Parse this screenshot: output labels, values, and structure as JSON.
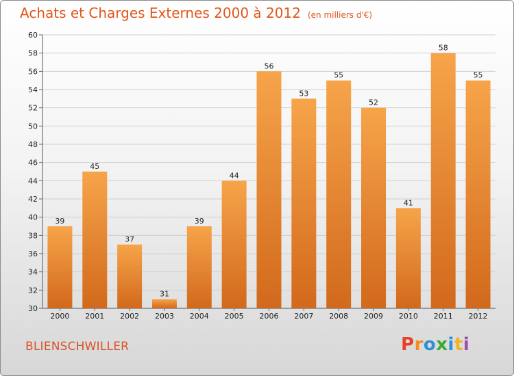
{
  "title": "Achats et Charges Externes 2000 à 2012",
  "unit": "(en milliers d'€)",
  "commune": "BLIENSCHWILLER",
  "logo": {
    "letters": [
      "P",
      "r",
      "o",
      "x",
      "i",
      "t",
      "i"
    ],
    "colors": [
      "#e63f2c",
      "#f28c1e",
      "#2f8fd6",
      "#3aa935",
      "#2f8fd6",
      "#f2b21e",
      "#9c4fa8"
    ]
  },
  "colors": {
    "bar_top": "#f6a44a",
    "bar_bottom": "#d2691c",
    "title": "#e0561c"
  },
  "chart_data": {
    "type": "bar",
    "title": "Achats et Charges Externes 2000 à 2012",
    "subtitle": "(en milliers d'€)",
    "categories": [
      "2000",
      "2001",
      "2002",
      "2003",
      "2004",
      "2005",
      "2006",
      "2007",
      "2008",
      "2009",
      "2010",
      "2011",
      "2012"
    ],
    "values": [
      39,
      45,
      37,
      31,
      39,
      44,
      56,
      53,
      55,
      52,
      41,
      58,
      55
    ],
    "ylim": [
      30,
      60
    ],
    "yticks": [
      30,
      32,
      34,
      36,
      38,
      40,
      42,
      44,
      46,
      48,
      50,
      52,
      54,
      56,
      58,
      60
    ],
    "grid": true
  }
}
